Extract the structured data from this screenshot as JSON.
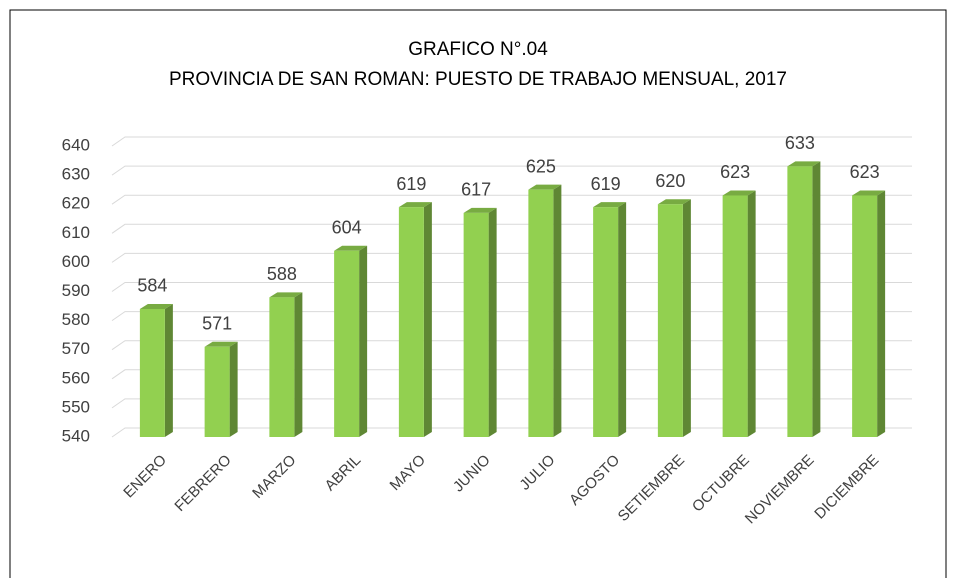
{
  "chart_data": {
    "type": "bar3d",
    "title": "GRAFICO N°.04",
    "subtitle": "PROVINCIA DE SAN ROMAN: PUESTO DE TRABAJO MENSUAL, 2017",
    "categories": [
      "ENERO",
      "FEBRERO",
      "MARZO",
      "ABRIL",
      "MAYO",
      "JUNIO",
      "JULIO",
      "AGOSTO",
      "SETIEMBRE",
      "OCTUBRE",
      "NOVIEMBRE",
      "DICIEMBRE"
    ],
    "values": [
      584,
      571,
      588,
      604,
      619,
      617,
      625,
      619,
      620,
      623,
      633,
      623
    ],
    "color": "#92d050",
    "ylim": [
      540,
      640
    ],
    "yticks": [
      540,
      550,
      560,
      570,
      580,
      590,
      600,
      610,
      620,
      630,
      640
    ],
    "grid": true
  }
}
